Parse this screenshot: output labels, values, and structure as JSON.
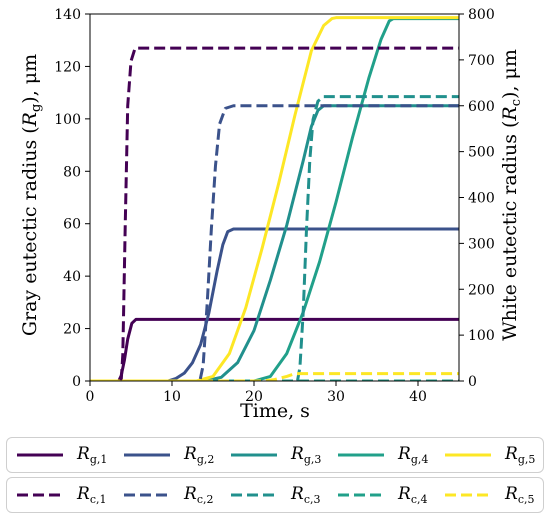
{
  "chart_data": {
    "type": "line",
    "xlabel": "Time, s",
    "ylabel_left_prefix": "Gray eutectic radius (",
    "ylabel_left_var": "R",
    "ylabel_left_sub": "g",
    "ylabel_left_suffix": "), μm",
    "ylabel_right_prefix": "White eutectic radius (",
    "ylabel_right_var": "R",
    "ylabel_right_sub": "c",
    "ylabel_right_suffix": "), μm",
    "xlim": [
      0,
      45
    ],
    "ylim_left": [
      0,
      140
    ],
    "ylim_right": [
      0,
      800
    ],
    "xticks": [
      0,
      10,
      20,
      30,
      40
    ],
    "yticks_left": [
      0,
      20,
      40,
      60,
      80,
      100,
      120,
      140
    ],
    "yticks_right": [
      0,
      100,
      200,
      300,
      400,
      500,
      600,
      700,
      800
    ],
    "legend_placement": "below",
    "series": [
      {
        "name": "R_g,1",
        "label_var": "R",
        "label_sub": "g,1",
        "axis": "left",
        "style": "solid",
        "color": "#440154",
        "x": [
          0,
          3.5,
          3.8,
          4.2,
          4.6,
          5.1,
          5.6,
          45
        ],
        "y": [
          0,
          0,
          2,
          8,
          16,
          22,
          23.5,
          23.5
        ]
      },
      {
        "name": "R_g,2",
        "label_var": "R",
        "label_sub": "g,2",
        "axis": "left",
        "style": "solid",
        "color": "#3b528b",
        "x": [
          0,
          9.5,
          10.5,
          11.5,
          12.5,
          13.5,
          14.5,
          15.5,
          16.2,
          16.8,
          17.5,
          45
        ],
        "y": [
          0,
          0,
          1,
          3,
          7,
          14,
          26,
          42,
          52,
          57,
          58,
          58
        ]
      },
      {
        "name": "R_g,3",
        "label_var": "R",
        "label_sub": "g,3",
        "axis": "right",
        "style": "solid",
        "color": "#21908d",
        "x": [
          0,
          14,
          16,
          18,
          20,
          22,
          24,
          26,
          27,
          27.8,
          28.5,
          45
        ],
        "y": [
          0,
          0,
          8,
          40,
          110,
          220,
          340,
          480,
          555,
          590,
          600,
          600
        ]
      },
      {
        "name": "R_g,4",
        "label_var": "R",
        "label_sub": "g,4",
        "axis": "right",
        "style": "solid",
        "color": "#21a08a",
        "x": [
          0,
          20,
          22,
          24,
          26,
          28,
          30,
          32,
          34,
          35.5,
          36.5,
          37,
          45
        ],
        "y": [
          0,
          0,
          10,
          60,
          150,
          260,
          390,
          530,
          660,
          745,
          785,
          790,
          790
        ]
      },
      {
        "name": "R_g,5",
        "label_var": "R",
        "label_sub": "g,5",
        "axis": "right",
        "style": "solid",
        "color": "#fde725",
        "x": [
          0,
          13,
          15,
          17,
          19,
          21,
          23,
          25,
          27,
          28.5,
          29.5,
          30,
          45
        ],
        "y": [
          0,
          0,
          10,
          60,
          160,
          290,
          430,
          580,
          720,
          775,
          790,
          792,
          792
        ]
      },
      {
        "name": "R_c,1",
        "label_var": "R",
        "label_sub": "c,1",
        "axis": "left",
        "style": "dashed",
        "color": "#440154",
        "x": [
          0,
          3.8,
          4.0,
          4.3,
          4.6,
          5.0,
          5.5,
          6.5,
          45
        ],
        "y": [
          0,
          0,
          10,
          60,
          105,
          122,
          127,
          127,
          127
        ]
      },
      {
        "name": "R_c,2",
        "label_var": "R",
        "label_sub": "c,2",
        "axis": "left",
        "style": "dashed",
        "color": "#3b528b",
        "x": [
          0,
          13.4,
          13.8,
          14.3,
          14.8,
          15.3,
          15.8,
          16.5,
          17.5,
          45
        ],
        "y": [
          0,
          0,
          6,
          30,
          58,
          82,
          98,
          104,
          105,
          105
        ]
      },
      {
        "name": "R_c,3",
        "label_var": "R",
        "label_sub": "c,3",
        "axis": "right",
        "style": "dashed",
        "color": "#21908d",
        "x": [
          0,
          25.3,
          25.6,
          26.0,
          26.4,
          26.8,
          27.2,
          27.8,
          28.5,
          45
        ],
        "y": [
          0,
          0,
          30,
          150,
          330,
          480,
          570,
          610,
          620,
          620
        ]
      },
      {
        "name": "R_c,4",
        "label_var": "R",
        "label_sub": "c,4",
        "axis": "right",
        "style": "dashed",
        "color": "#21a08a",
        "x": [
          0,
          26.5,
          45
        ],
        "y": [
          0,
          0,
          0
        ]
      },
      {
        "name": "R_c,5",
        "label_var": "R",
        "label_sub": "c,5",
        "axis": "right",
        "style": "dashed",
        "color": "#fde725",
        "x": [
          0,
          21,
          22.5,
          24,
          25,
          45
        ],
        "y": [
          0,
          0,
          3,
          10,
          16,
          16
        ]
      }
    ]
  }
}
